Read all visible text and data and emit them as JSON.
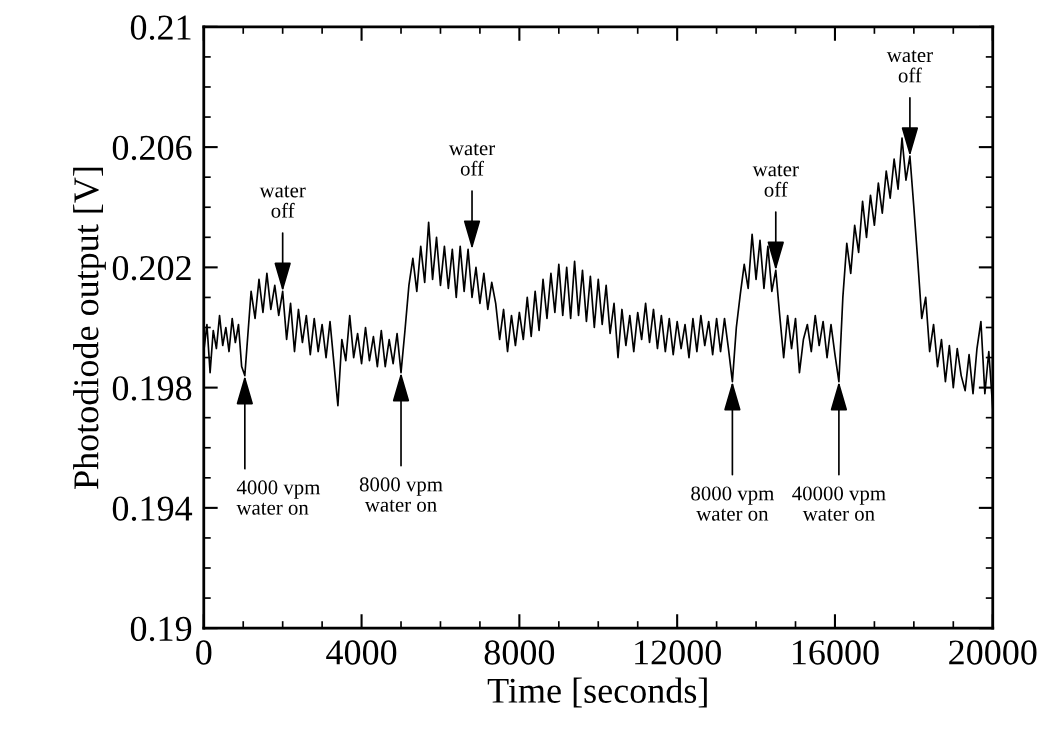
{
  "chart_data": {
    "type": "line",
    "xlabel": "Time [seconds]",
    "ylabel": "Photodiode output [V]",
    "xlim": [
      0,
      20000
    ],
    "xticks": [
      0,
      4000,
      8000,
      12000,
      16000,
      20000
    ],
    "ylim": [
      0.19,
      0.21
    ],
    "yticks": [
      0.19,
      0.194,
      0.198,
      0.202,
      0.206,
      0.21
    ],
    "grid": false,
    "legend": false,
    "marker": "none",
    "line_style": "solid",
    "series": [
      {
        "color": "#000000",
        "x": [
          0,
          80,
          160,
          240,
          320,
          400,
          480,
          560,
          640,
          720,
          800,
          880,
          960,
          1040,
          1120,
          1200,
          1300,
          1400,
          1500,
          1600,
          1700,
          1800,
          1900,
          2000,
          2100,
          2200,
          2300,
          2400,
          2500,
          2600,
          2700,
          2800,
          2900,
          3000,
          3100,
          3200,
          3300,
          3400,
          3500,
          3600,
          3700,
          3800,
          3900,
          4000,
          4100,
          4200,
          4300,
          4400,
          4500,
          4600,
          4700,
          4800,
          4900,
          5000,
          5100,
          5200,
          5300,
          5400,
          5500,
          5600,
          5700,
          5800,
          5900,
          6000,
          6100,
          6200,
          6300,
          6400,
          6500,
          6600,
          6700,
          6800,
          6900,
          7000,
          7100,
          7200,
          7300,
          7400,
          7500,
          7600,
          7700,
          7800,
          7900,
          8000,
          8100,
          8200,
          8300,
          8400,
          8500,
          8600,
          8700,
          8800,
          8900,
          9000,
          9100,
          9200,
          9300,
          9400,
          9500,
          9600,
          9700,
          9800,
          9900,
          10000,
          10100,
          10200,
          10300,
          10400,
          10500,
          10600,
          10700,
          10800,
          10900,
          11000,
          11100,
          11200,
          11300,
          11400,
          11500,
          11600,
          11700,
          11800,
          11900,
          12000,
          12100,
          12200,
          12300,
          12400,
          12500,
          12600,
          12700,
          12800,
          12900,
          13000,
          13100,
          13200,
          13300,
          13400,
          13500,
          13600,
          13700,
          13800,
          13900,
          14000,
          14100,
          14200,
          14300,
          14400,
          14500,
          14600,
          14700,
          14800,
          14900,
          15000,
          15100,
          15200,
          15300,
          15400,
          15500,
          15600,
          15700,
          15800,
          15900,
          16000,
          16100,
          16200,
          16300,
          16400,
          16500,
          16600,
          16700,
          16800,
          16900,
          17000,
          17100,
          17200,
          17300,
          17400,
          17500,
          17600,
          17700,
          17800,
          17900,
          18000,
          18100,
          18200,
          18300,
          18400,
          18500,
          18600,
          18700,
          18800,
          18900,
          19000,
          19100,
          19200,
          19300,
          19400,
          19500,
          19600,
          19700,
          19800,
          19900,
          20000
        ],
        "values": [
          0.1992,
          0.2001,
          0.1985,
          0.1999,
          0.1993,
          0.2004,
          0.1994,
          0.2,
          0.1992,
          0.2003,
          0.1995,
          0.2001,
          0.1987,
          0.1984,
          0.1998,
          0.2012,
          0.2003,
          0.2016,
          0.2005,
          0.2018,
          0.2006,
          0.2014,
          0.2004,
          0.2012,
          0.1996,
          0.2008,
          0.1992,
          0.2006,
          0.1995,
          0.2004,
          0.1991,
          0.2003,
          0.1992,
          0.2001,
          0.199,
          0.2002,
          0.1988,
          0.1974,
          0.1996,
          0.1989,
          0.2004,
          0.199,
          0.1998,
          0.1988,
          0.2,
          0.1989,
          0.1997,
          0.1987,
          0.1999,
          0.1987,
          0.1996,
          0.1988,
          0.1998,
          0.1985,
          0.1999,
          0.2014,
          0.2023,
          0.2012,
          0.2027,
          0.2015,
          0.2035,
          0.2016,
          0.203,
          0.2014,
          0.2027,
          0.2013,
          0.2026,
          0.201,
          0.2027,
          0.2012,
          0.2026,
          0.201,
          0.202,
          0.2008,
          0.2018,
          0.2006,
          0.2015,
          0.2008,
          0.1996,
          0.2006,
          0.1992,
          0.2004,
          0.1994,
          0.2005,
          0.1996,
          0.201,
          0.1997,
          0.2012,
          0.1999,
          0.2016,
          0.2003,
          0.2018,
          0.2005,
          0.2021,
          0.2004,
          0.202,
          0.2003,
          0.2022,
          0.2004,
          0.2019,
          0.2002,
          0.2017,
          0.2,
          0.2016,
          0.2001,
          0.2014,
          0.1998,
          0.2008,
          0.199,
          0.2006,
          0.1994,
          0.2004,
          0.1992,
          0.2005,
          0.1996,
          0.2008,
          0.1995,
          0.2006,
          0.1993,
          0.2004,
          0.1992,
          0.2003,
          0.1991,
          0.2002,
          0.1993,
          0.2001,
          0.199,
          0.2003,
          0.1992,
          0.2004,
          0.1994,
          0.2002,
          0.1991,
          0.2003,
          0.1992,
          0.2003,
          0.1993,
          0.1982,
          0.2,
          0.2011,
          0.2021,
          0.2013,
          0.2031,
          0.2016,
          0.2029,
          0.2013,
          0.2027,
          0.2012,
          0.2019,
          0.2004,
          0.199,
          0.2004,
          0.1993,
          0.2003,
          0.1985,
          0.1996,
          0.2001,
          0.1992,
          0.2004,
          0.1994,
          0.2002,
          0.199,
          0.2001,
          0.1991,
          0.1982,
          0.201,
          0.2028,
          0.2018,
          0.2034,
          0.2025,
          0.2042,
          0.203,
          0.2044,
          0.2034,
          0.2048,
          0.2038,
          0.2052,
          0.2043,
          0.2056,
          0.2046,
          0.2063,
          0.2049,
          0.2057,
          0.204,
          0.2022,
          0.2003,
          0.201,
          0.1992,
          0.2001,
          0.1987,
          0.1996,
          0.1982,
          0.1994,
          0.198,
          0.1993,
          0.1984,
          0.1979,
          0.1991,
          0.1978,
          0.1993,
          0.2002,
          0.1978,
          0.1992,
          0.1973
        ]
      }
    ],
    "annotations": [
      {
        "text": "4000 vpm\nwater on",
        "x": 1040,
        "y": 0.1984
      },
      {
        "text": "water\noff",
        "x": 2000,
        "y": 0.2012
      },
      {
        "text": "8000 vpm\nwater on",
        "x": 5000,
        "y": 0.1985
      },
      {
        "text": "water\noff",
        "x": 6800,
        "y": 0.2026
      },
      {
        "text": "8000 vpm\nwater on",
        "x": 13400,
        "y": 0.1982
      },
      {
        "text": "water\noff",
        "x": 14500,
        "y": 0.2019
      },
      {
        "text": "40000 vpm\nwater on",
        "x": 16100,
        "y": 0.1982
      },
      {
        "text": "water\noff",
        "x": 17900,
        "y": 0.2057
      }
    ]
  }
}
